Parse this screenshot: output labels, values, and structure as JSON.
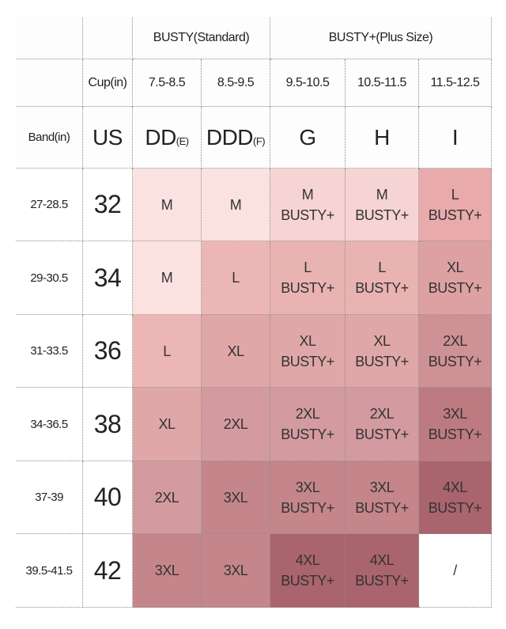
{
  "header": {
    "groups": [
      "BUSTY(Standard)",
      "BUSTY+(Plus Size)"
    ],
    "cup_label": "Cup(in)",
    "cups": [
      "7.5-8.5",
      "8.5-9.5",
      "9.5-10.5",
      "10.5-11.5",
      "11.5-12.5"
    ],
    "band_label": "Band(in)",
    "us_label": "US",
    "letters": [
      {
        "main": "DD",
        "sub": "(E)"
      },
      {
        "main": "DDD",
        "sub": "(F)"
      },
      {
        "main": "G"
      },
      {
        "main": "H"
      },
      {
        "main": "I"
      }
    ]
  },
  "rows": [
    {
      "band": "27-28.5",
      "us": "32",
      "cells": [
        {
          "lines": [
            "M"
          ],
          "color": "#fbe2e0"
        },
        {
          "lines": [
            "M"
          ],
          "color": "#fbe2e0"
        },
        {
          "lines": [
            "M",
            "BUSTY+"
          ],
          "color": "#f6d4d3"
        },
        {
          "lines": [
            "M",
            "BUSTY+"
          ],
          "color": "#f6d4d3"
        },
        {
          "lines": [
            "L",
            "BUSTY+"
          ],
          "color": "#e8aaab"
        }
      ]
    },
    {
      "band": "29-30.5",
      "us": "34",
      "cells": [
        {
          "lines": [
            "M"
          ],
          "color": "#fbe2e0"
        },
        {
          "lines": [
            "L"
          ],
          "color": "#ebb6b5"
        },
        {
          "lines": [
            "L",
            "BUSTY+"
          ],
          "color": "#e9b3b2"
        },
        {
          "lines": [
            "L",
            "BUSTY+"
          ],
          "color": "#e9b3b2"
        },
        {
          "lines": [
            "XL",
            "BUSTY+"
          ],
          "color": "#dea1a3"
        }
      ]
    },
    {
      "band": "31-33.5",
      "us": "36",
      "cells": [
        {
          "lines": [
            "L"
          ],
          "color": "#ebb6b5"
        },
        {
          "lines": [
            "XL"
          ],
          "color": "#e0a7a8"
        },
        {
          "lines": [
            "XL",
            "BUSTY+"
          ],
          "color": "#e0a7a8"
        },
        {
          "lines": [
            "XL",
            "BUSTY+"
          ],
          "color": "#e0a7a8"
        },
        {
          "lines": [
            "2XL",
            "BUSTY+"
          ],
          "color": "#cd9196"
        }
      ]
    },
    {
      "band": "34-36.5",
      "us": "38",
      "cells": [
        {
          "lines": [
            "XL"
          ],
          "color": "#e0a7a8"
        },
        {
          "lines": [
            "2XL"
          ],
          "color": "#d39ba0"
        },
        {
          "lines": [
            "2XL",
            "BUSTY+"
          ],
          "color": "#d39ba0"
        },
        {
          "lines": [
            "2XL",
            "BUSTY+"
          ],
          "color": "#d39ba0"
        },
        {
          "lines": [
            "3XL",
            "BUSTY+"
          ],
          "color": "#bd7b81"
        }
      ]
    },
    {
      "band": "37-39",
      "us": "40",
      "cells": [
        {
          "lines": [
            "2XL"
          ],
          "color": "#d39ba0"
        },
        {
          "lines": [
            "3XL"
          ],
          "color": "#c4868b"
        },
        {
          "lines": [
            "3XL",
            "BUSTY+"
          ],
          "color": "#c4868b"
        },
        {
          "lines": [
            "3XL",
            "BUSTY+"
          ],
          "color": "#c4868b"
        },
        {
          "lines": [
            "4XL",
            "BUSTY+"
          ],
          "color": "#aa646d"
        }
      ]
    },
    {
      "band": "39.5-41.5",
      "us": "42",
      "cells": [
        {
          "lines": [
            "3XL"
          ],
          "color": "#c4868b"
        },
        {
          "lines": [
            "3XL"
          ],
          "color": "#c4868b"
        },
        {
          "lines": [
            "4XL",
            "BUSTY+"
          ],
          "color": "#aa646d"
        },
        {
          "lines": [
            "4XL",
            "BUSTY+"
          ],
          "color": "#aa646d"
        },
        {
          "lines": [
            "/"
          ],
          "color": "#ffffff"
        }
      ]
    }
  ]
}
